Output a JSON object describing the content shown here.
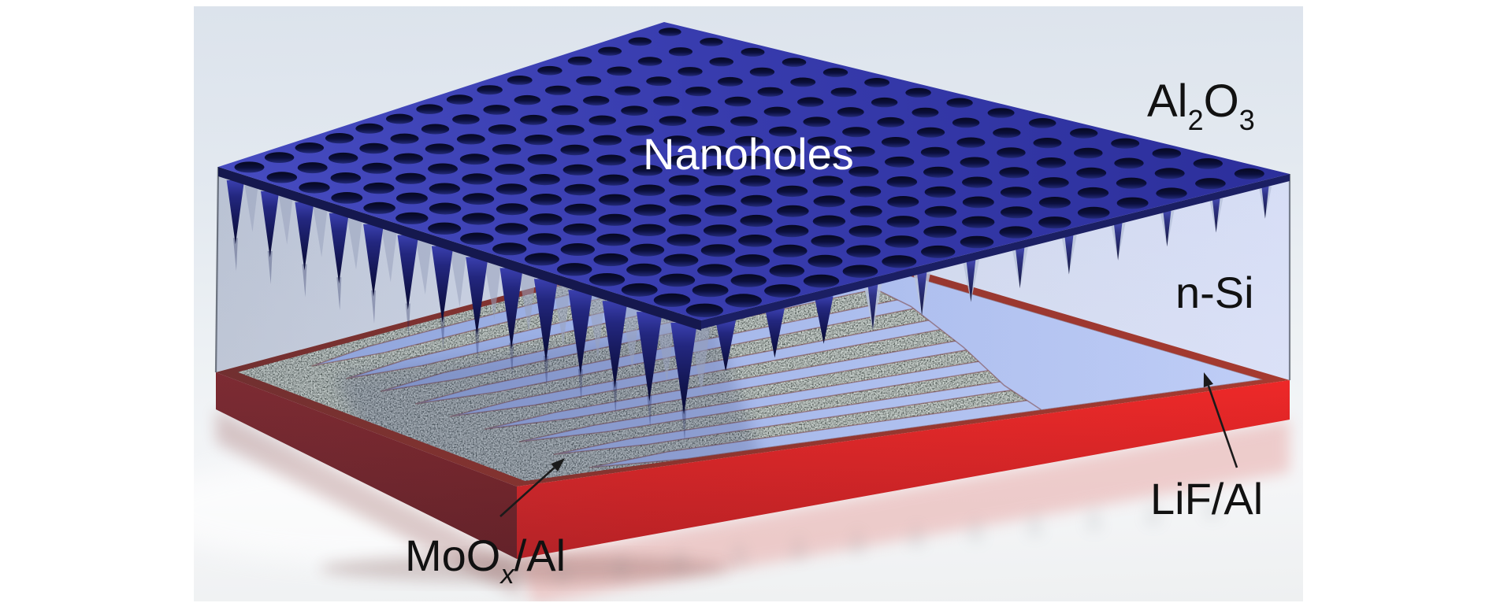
{
  "figure": {
    "title": "Nanohole solar cell structure schematic",
    "labels": {
      "nanoholes": "Nanoholes",
      "al2o3": {
        "p1": "Al",
        "s1": "2",
        "p2": "O",
        "s2": "3"
      },
      "n_si": "n-Si",
      "lif_al": "LiF/Al",
      "moox_al": {
        "p1": "MoO",
        "s1": "x",
        "p2": "/Al"
      }
    },
    "callouts": [
      {
        "label": "MoOx/Al",
        "points_to": "speckled gray rear finger electrode"
      },
      {
        "label": "LiF/Al",
        "points_to": "light blue rear surface between fingers"
      }
    ],
    "colors": {
      "plate_blue": "#383cae",
      "plate_blue_light": "#464bc0",
      "plate_blue_dark": "#2c2f9b",
      "hole_navy": "#0b0f3c",
      "spike_navy": "#11134a",
      "lif_blue": "#a6b9ee",
      "lif_blue_light": "#bccbf6",
      "lif_blue_dark": "#8ea6e4",
      "moox_gray": "#4c544d",
      "red_bright": "#e01313",
      "red_side_dark": "#6a1013",
      "red_border": "#8c241a",
      "arrow": "#1a1a1a",
      "label_dark": "#111111",
      "label_light": "#ffffff",
      "background_top": "#dce3ec",
      "background_bottom": "#eef0f1"
    }
  }
}
